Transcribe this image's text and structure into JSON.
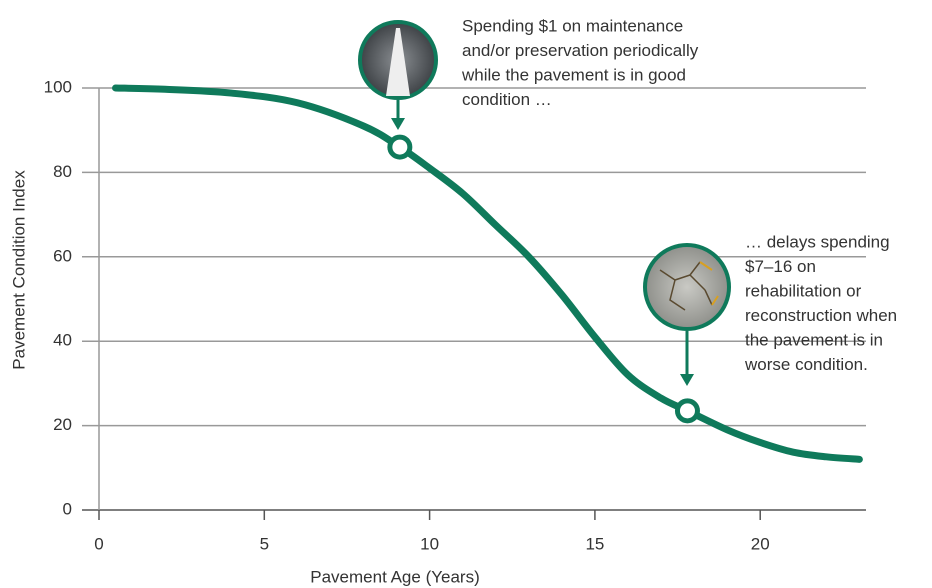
{
  "chart_data": {
    "type": "line",
    "xlabel": "Pavement Age (Years)",
    "ylabel": "Pavement Condition Index",
    "x": [
      0.5,
      2,
      4,
      6,
      8,
      9.1,
      10,
      11,
      12,
      13,
      14,
      15,
      16,
      17,
      17.8,
      19,
      20,
      21,
      22,
      23
    ],
    "series": [
      {
        "color": "#0f7a5b",
        "values": [
          100,
          99.7,
          98.8,
          96.5,
          91,
          86,
          81,
          75,
          67.5,
          60,
          51,
          41,
          32,
          26.5,
          23.5,
          19,
          16,
          13.7,
          12.6,
          12
        ]
      }
    ],
    "xlim": [
      0,
      23.2
    ],
    "ylim": [
      0,
      100
    ],
    "xticks": [
      0,
      5,
      10,
      15,
      20
    ],
    "yticks": [
      0,
      20,
      40,
      60,
      80,
      100
    ],
    "grid": true,
    "annotations": [
      {
        "x": 9.1,
        "y": 86,
        "lines": [
          "Spending $1 on maintenance",
          "and/or preservation periodically",
          "while the pavement is in good",
          "condition …"
        ]
      },
      {
        "x": 17.8,
        "y": 23.5,
        "lines": [
          "… delays spending",
          "$7–16 on",
          "rehabilitation or",
          "reconstruction when",
          "the pavement is in",
          "worse condition."
        ]
      }
    ]
  }
}
